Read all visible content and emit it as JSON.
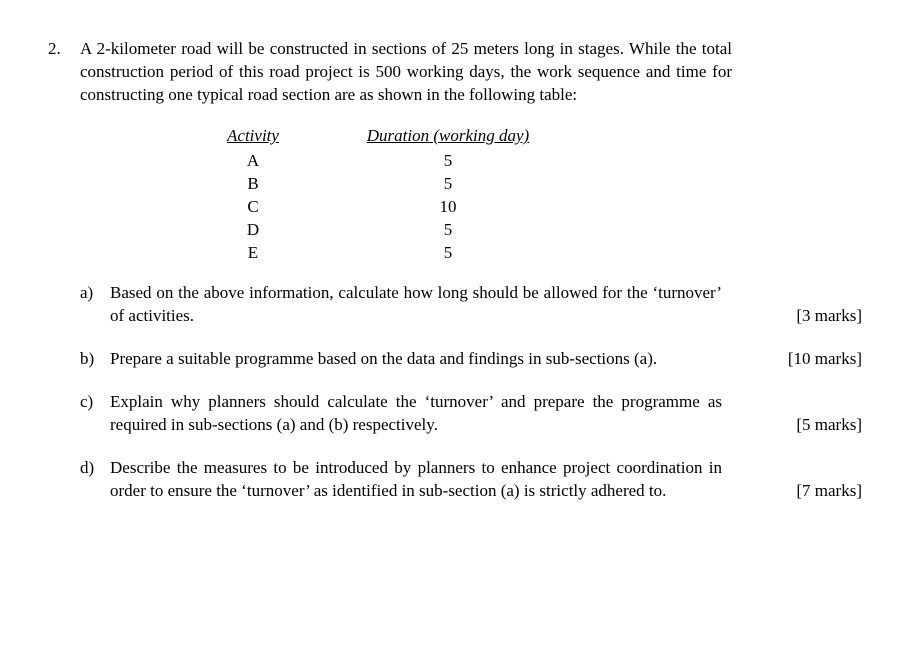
{
  "question": {
    "number": "2.",
    "intro": "A 2-kilometer road will be constructed in sections of 25 meters long in stages. While the total construction period of this road project is 500 working days, the work sequence and time for constructing one typical road section are as shown in the following table:"
  },
  "table": {
    "header_activity": "Activity",
    "header_duration": "Duration (working day)",
    "rows": [
      {
        "activity": "A",
        "duration": "5"
      },
      {
        "activity": "B",
        "duration": "5"
      },
      {
        "activity": "C",
        "duration": "10"
      },
      {
        "activity": "D",
        "duration": "5"
      },
      {
        "activity": "E",
        "duration": "5"
      }
    ]
  },
  "subs": {
    "a": {
      "letter": "a)",
      "text": "Based on the above information, calculate how long should be allowed for the ‘turnover’ of activities.",
      "marks": "[3 marks]"
    },
    "b": {
      "letter": "b)",
      "text": "Prepare a suitable programme based on the data and findings in sub-sections (a).",
      "marks": "[10 marks]"
    },
    "c": {
      "letter": "c)",
      "text": "Explain why planners should calculate the ‘turnover’ and prepare the programme as required in sub-sections (a) and (b) respectively.",
      "marks": "[5 marks]"
    },
    "d": {
      "letter": "d)",
      "text": "Describe the measures to be introduced by planners to enhance project coordination in order to ensure the ‘turnover’ as identified in sub-section (a) is strictly adhered to.",
      "marks": "[7 marks]"
    }
  }
}
